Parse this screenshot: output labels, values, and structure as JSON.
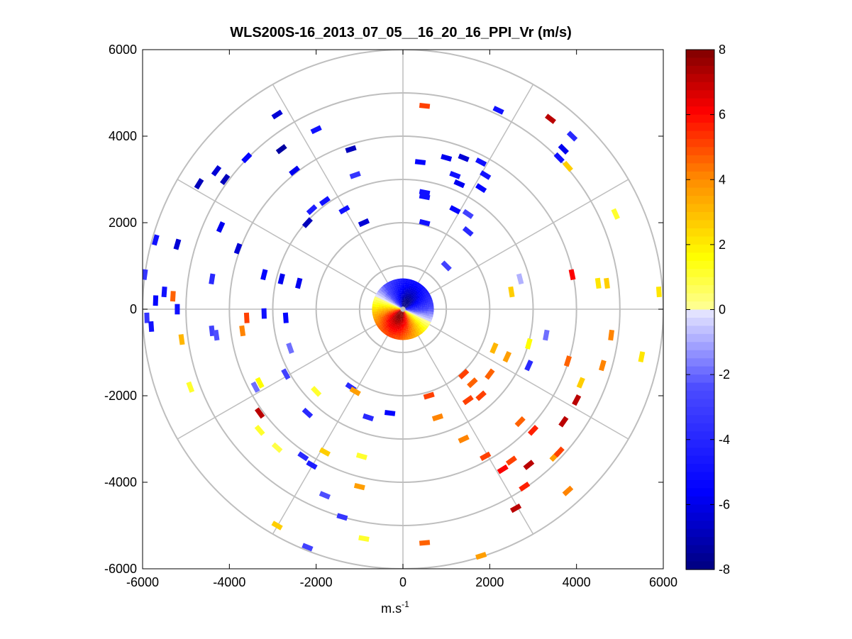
{
  "chart_data": {
    "type": "scatter",
    "subtype": "polar_ppi",
    "title": "WLS200S-16_2013_07_05__16_20_16_PPI_Vr (m/s)",
    "xlabel": "m.s",
    "xlabel_sup": "-1",
    "ylabel": "",
    "xlim": [
      -6000,
      6000
    ],
    "ylim": [
      -6000,
      6000
    ],
    "xticks": [
      "-6000",
      "-4000",
      "-2000",
      "0",
      "2000",
      "4000",
      "6000"
    ],
    "yticks": [
      "6000",
      "4000",
      "2000",
      "0",
      "-2000",
      "-4000",
      "-6000"
    ],
    "range_rings": [
      1000,
      2000,
      3000,
      4000,
      5000,
      6000
    ],
    "spoke_angles_deg": [
      0,
      30,
      60,
      90,
      120,
      150,
      180,
      210,
      240,
      270,
      300,
      330
    ],
    "colorbar": {
      "min": -8,
      "max": 8,
      "levels": 64,
      "ticks": [
        "8",
        "6",
        "4",
        "2",
        "0",
        "-2",
        "-4",
        "-6",
        "-8"
      ]
    },
    "inner_core": {
      "radius": 650,
      "gates": 14,
      "beams": 72,
      "velocity_range": [
        -8,
        8
      ]
    },
    "points": [
      {
        "x": -2900,
        "y": 4500,
        "v": -6.5
      },
      {
        "x": -2000,
        "y": 4150,
        "v": -5
      },
      {
        "x": -1200,
        "y": 3700,
        "v": -7
      },
      {
        "x": -2800,
        "y": 3700,
        "v": -7.5
      },
      {
        "x": -3600,
        "y": 3500,
        "v": -5.5
      },
      {
        "x": -4300,
        "y": 3200,
        "v": -6.5
      },
      {
        "x": -4700,
        "y": 2900,
        "v": -7
      },
      {
        "x": -4100,
        "y": 3000,
        "v": -7
      },
      {
        "x": -2500,
        "y": 3200,
        "v": -6
      },
      {
        "x": -1100,
        "y": 3100,
        "v": -3.5
      },
      {
        "x": -1800,
        "y": 2500,
        "v": -5
      },
      {
        "x": -2100,
        "y": 2300,
        "v": -4.5
      },
      {
        "x": -2200,
        "y": 2000,
        "v": -7
      },
      {
        "x": -1350,
        "y": 2300,
        "v": -5
      },
      {
        "x": -900,
        "y": 2000,
        "v": -6.5
      },
      {
        "x": -3800,
        "y": 1400,
        "v": -6.5
      },
      {
        "x": -4200,
        "y": 1900,
        "v": -6
      },
      {
        "x": -5200,
        "y": 1500,
        "v": -6.5
      },
      {
        "x": -5700,
        "y": 1600,
        "v": -5
      },
      {
        "x": -5950,
        "y": 800,
        "v": -3.5
      },
      {
        "x": -5500,
        "y": 400,
        "v": -5
      },
      {
        "x": -5700,
        "y": 200,
        "v": -5.5
      },
      {
        "x": -5300,
        "y": 300,
        "v": 4.5
      },
      {
        "x": -5200,
        "y": 0,
        "v": -5
      },
      {
        "x": -5900,
        "y": -200,
        "v": -3.5
      },
      {
        "x": -5800,
        "y": -400,
        "v": -5
      },
      {
        "x": -5100,
        "y": -700,
        "v": 3
      },
      {
        "x": -4400,
        "y": 700,
        "v": -4
      },
      {
        "x": -4400,
        "y": -500,
        "v": -3
      },
      {
        "x": -4300,
        "y": -600,
        "v": -2.5
      },
      {
        "x": -3700,
        "y": -500,
        "v": 4
      },
      {
        "x": -3600,
        "y": -200,
        "v": 5
      },
      {
        "x": -3200,
        "y": -100,
        "v": -5
      },
      {
        "x": -3200,
        "y": 800,
        "v": -5.5
      },
      {
        "x": -2800,
        "y": 700,
        "v": -6
      },
      {
        "x": -2400,
        "y": 600,
        "v": -6
      },
      {
        "x": -2700,
        "y": -200,
        "v": -5.5
      },
      {
        "x": -2600,
        "y": -900,
        "v": -2
      },
      {
        "x": -2700,
        "y": -1500,
        "v": -3
      },
      {
        "x": -4900,
        "y": -1800,
        "v": 1
      },
      {
        "x": -3400,
        "y": -1800,
        "v": -2
      },
      {
        "x": -3300,
        "y": -1700,
        "v": 1.5
      },
      {
        "x": -2000,
        "y": -1900,
        "v": 1
      },
      {
        "x": -1200,
        "y": -1800,
        "v": -4
      },
      {
        "x": -1100,
        "y": -1900,
        "v": 3.5
      },
      {
        "x": -3300,
        "y": -2400,
        "v": 7
      },
      {
        "x": -3300,
        "y": -2800,
        "v": 1
      },
      {
        "x": -2900,
        "y": -3200,
        "v": 0.8
      },
      {
        "x": -2300,
        "y": -3400,
        "v": -4
      },
      {
        "x": -2100,
        "y": -3600,
        "v": -4.5
      },
      {
        "x": -1800,
        "y": -3300,
        "v": 2.5
      },
      {
        "x": -2200,
        "y": -2400,
        "v": -4
      },
      {
        "x": -950,
        "y": -3400,
        "v": 1
      },
      {
        "x": -1800,
        "y": -4300,
        "v": -2.5
      },
      {
        "x": -1400,
        "y": -4800,
        "v": -3.5
      },
      {
        "x": -1000,
        "y": -4100,
        "v": 3.5
      },
      {
        "x": -800,
        "y": -2500,
        "v": -4
      },
      {
        "x": -2900,
        "y": -5000,
        "v": 2.5
      },
      {
        "x": -2200,
        "y": -5500,
        "v": -3
      },
      {
        "x": -900,
        "y": -5300,
        "v": 1
      },
      {
        "x": 500,
        "y": -5400,
        "v": 4.5
      },
      {
        "x": 1800,
        "y": -5700,
        "v": 3.5
      },
      {
        "x": 2600,
        "y": -4600,
        "v": 7
      },
      {
        "x": 2800,
        "y": -4100,
        "v": 5.5
      },
      {
        "x": 2900,
        "y": -3600,
        "v": 7
      },
      {
        "x": 2500,
        "y": -3500,
        "v": 5
      },
      {
        "x": 2300,
        "y": -3700,
        "v": 6
      },
      {
        "x": 3500,
        "y": -3400,
        "v": 3.5
      },
      {
        "x": 3600,
        "y": -3300,
        "v": 5
      },
      {
        "x": 3700,
        "y": -2600,
        "v": 7
      },
      {
        "x": 3800,
        "y": -4200,
        "v": 4
      },
      {
        "x": 4000,
        "y": -2100,
        "v": 7
      },
      {
        "x": 3000,
        "y": -2800,
        "v": 5.5
      },
      {
        "x": 2700,
        "y": -2600,
        "v": 4.5
      },
      {
        "x": 1900,
        "y": -3400,
        "v": 5
      },
      {
        "x": 1400,
        "y": -3000,
        "v": 4
      },
      {
        "x": 1500,
        "y": -2100,
        "v": 5
      },
      {
        "x": 1800,
        "y": -2000,
        "v": 5
      },
      {
        "x": 800,
        "y": -2500,
        "v": 4
      },
      {
        "x": 600,
        "y": -2000,
        "v": 5
      },
      {
        "x": 1400,
        "y": -1500,
        "v": 5
      },
      {
        "x": 2100,
        "y": -900,
        "v": 3
      },
      {
        "x": 2900,
        "y": -800,
        "v": 1.5
      },
      {
        "x": 3300,
        "y": -600,
        "v": -2
      },
      {
        "x": 2900,
        "y": -1300,
        "v": -4
      },
      {
        "x": 3800,
        "y": -1200,
        "v": 4.5
      },
      {
        "x": 4800,
        "y": -600,
        "v": 4
      },
      {
        "x": 5500,
        "y": -1100,
        "v": 2
      },
      {
        "x": 5900,
        "y": 400,
        "v": 2
      },
      {
        "x": 4700,
        "y": 600,
        "v": 2.5
      },
      {
        "x": 4500,
        "y": 600,
        "v": 2
      },
      {
        "x": 3900,
        "y": 800,
        "v": 6
      },
      {
        "x": 2700,
        "y": 700,
        "v": -1
      },
      {
        "x": 2500,
        "y": 400,
        "v": 2.5
      },
      {
        "x": 4900,
        "y": 2200,
        "v": 1
      },
      {
        "x": 3400,
        "y": 4400,
        "v": 7
      },
      {
        "x": 3700,
        "y": 3700,
        "v": -6
      },
      {
        "x": 3600,
        "y": 3500,
        "v": -5
      },
      {
        "x": 3900,
        "y": 4000,
        "v": -4
      },
      {
        "x": 3800,
        "y": 3300,
        "v": 2.5
      },
      {
        "x": 2200,
        "y": 4600,
        "v": -5
      },
      {
        "x": 1400,
        "y": 3500,
        "v": -6.5
      },
      {
        "x": 1000,
        "y": 3500,
        "v": -6
      },
      {
        "x": 1800,
        "y": 3400,
        "v": -5
      },
      {
        "x": 1900,
        "y": 3100,
        "v": -5
      },
      {
        "x": 500,
        "y": 4700,
        "v": 5
      },
      {
        "x": 400,
        "y": 3400,
        "v": -5.5
      },
      {
        "x": 1200,
        "y": 3100,
        "v": -5
      },
      {
        "x": 1300,
        "y": 2900,
        "v": -6
      },
      {
        "x": 1200,
        "y": 2300,
        "v": -5.5
      },
      {
        "x": 1500,
        "y": 2200,
        "v": -3
      },
      {
        "x": 1500,
        "y": 1800,
        "v": -4
      },
      {
        "x": 500,
        "y": 2700,
        "v": -5
      },
      {
        "x": 500,
        "y": 2600,
        "v": -5
      },
      {
        "x": 500,
        "y": 2000,
        "v": -5
      },
      {
        "x": 1000,
        "y": 1000,
        "v": -3
      },
      {
        "x": 1800,
        "y": 2800,
        "v": -5.5
      },
      {
        "x": -300,
        "y": -2400,
        "v": -5.5
      },
      {
        "x": 1600,
        "y": -1700,
        "v": 4.5
      },
      {
        "x": 2000,
        "y": -1500,
        "v": 4.5
      },
      {
        "x": 2400,
        "y": -1100,
        "v": 3.5
      },
      {
        "x": 4100,
        "y": -1700,
        "v": 2.5
      },
      {
        "x": 4600,
        "y": -1300,
        "v": 4
      }
    ]
  }
}
